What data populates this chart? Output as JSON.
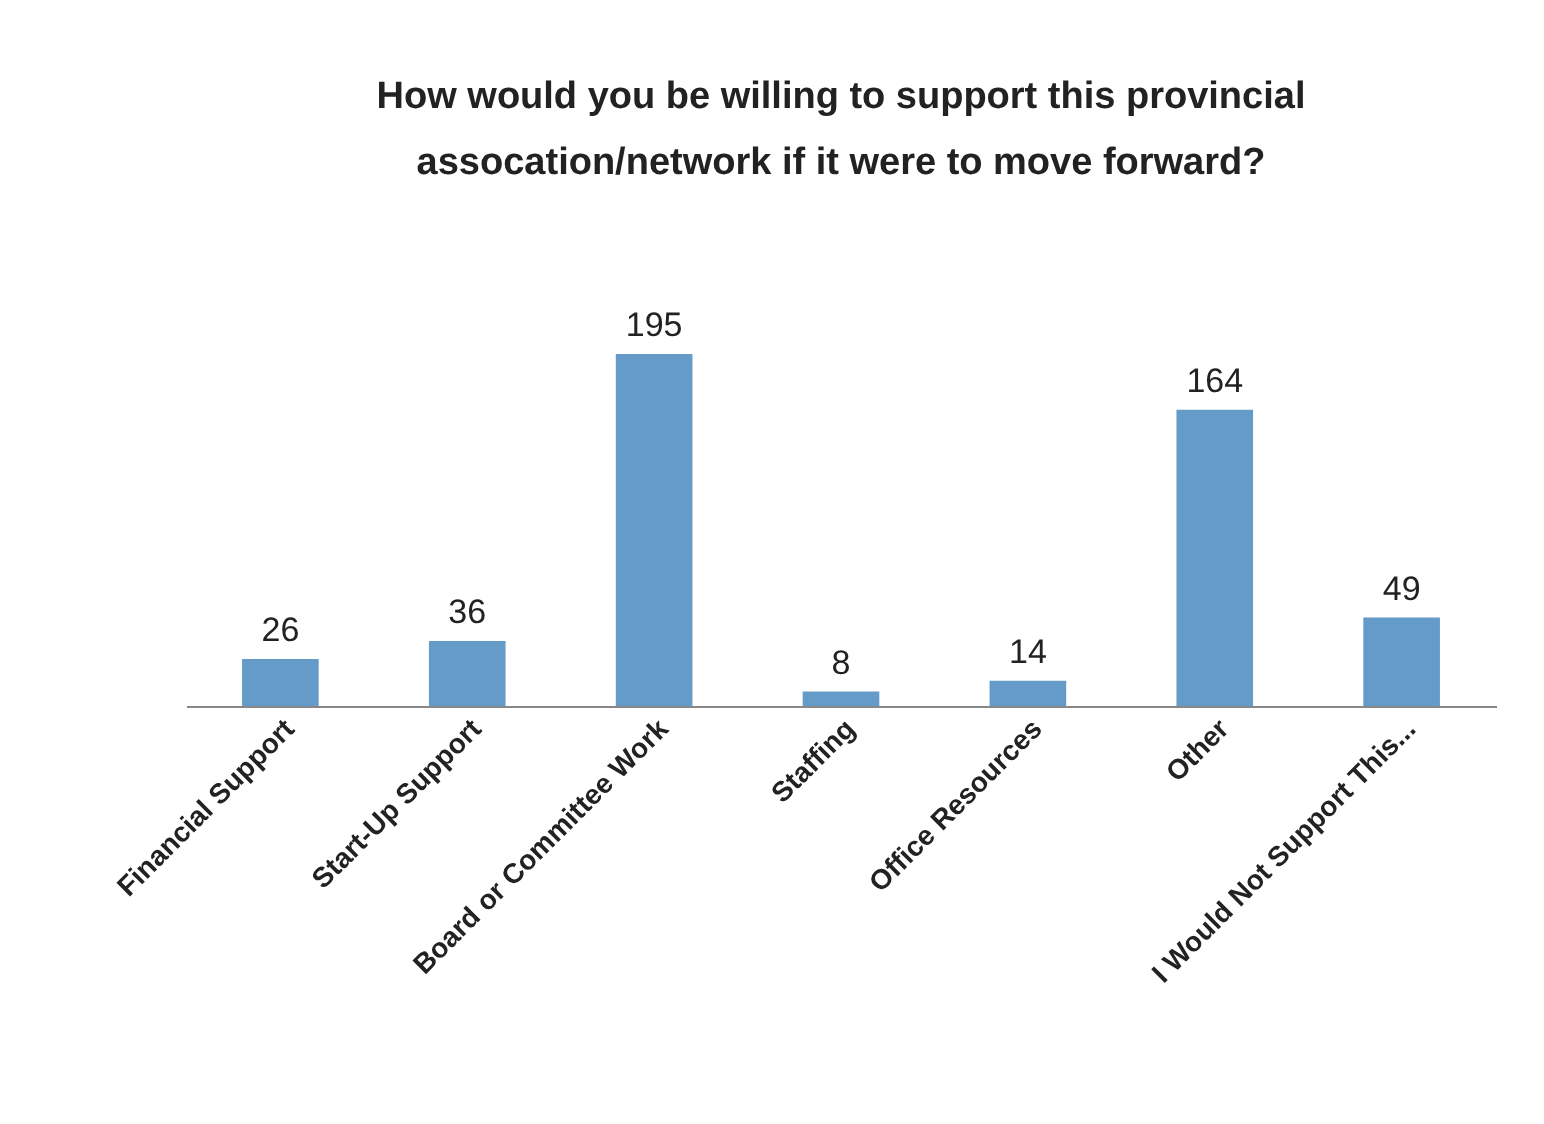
{
  "chart_data": {
    "type": "bar",
    "title": "How would you be willing to support this provincial assocation/network if it were to move forward?",
    "categories": [
      "Financial Support",
      "Start-Up Support",
      "Board or Committee Work",
      "Staffing",
      "Office Resources",
      "Other",
      "I Would Not Support This..."
    ],
    "values": [
      26,
      36,
      195,
      8,
      14,
      164,
      49
    ],
    "color": "#659bc9",
    "data_labels": true
  }
}
